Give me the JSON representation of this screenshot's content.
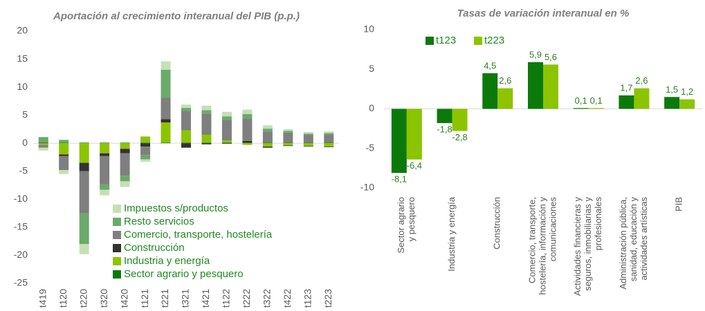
{
  "chart_data": [
    {
      "type": "stacked_bar",
      "title": "Aportación al crecimiento interanual del PIB (p.p.)",
      "categories": [
        "t419",
        "t120",
        "t220",
        "t320",
        "t420",
        "t121",
        "t221",
        "t321",
        "t421",
        "t122",
        "t222",
        "t322",
        "t422",
        "t123",
        "t223"
      ],
      "series": [
        {
          "name": "Sector agrario y pesquero",
          "color": "#0b7a0b",
          "values": [
            0,
            0.1,
            0.1,
            0.1,
            0.1,
            0.1,
            0.1,
            0.1,
            0.1,
            0.1,
            0.1,
            0.1,
            0.1,
            0.1,
            0.1
          ]
        },
        {
          "name": "Industria y energía",
          "color": "#8dc400",
          "values": [
            -0.3,
            -2,
            -3.5,
            -1.8,
            -1,
            1.1,
            3.6,
            2.2,
            1.4,
            0.4,
            -0.3,
            -0.6,
            -0.4,
            -0.5,
            -0.6
          ]
        },
        {
          "name": "Construcción",
          "color": "#333333",
          "values": [
            0.1,
            -0.3,
            -1.5,
            -0.5,
            -0.8,
            -0.6,
            0.6,
            -0.8,
            -0.2,
            -0.1,
            0.3,
            -0.2,
            -0.1,
            -0.1,
            -0.1
          ]
        },
        {
          "name": "Comercio, transporte, hostelería",
          "color": "#7f7f7f",
          "values": [
            -0.5,
            -2.5,
            -7.5,
            -5,
            -4,
            -1.5,
            3.8,
            3.4,
            3.8,
            3.6,
            4.0,
            2.0,
            1.8,
            1.4,
            1.4
          ]
        },
        {
          "name": "Resto servicios",
          "color": "#6aaa6a",
          "values": [
            1.0,
            0.5,
            -5.5,
            -1,
            -1,
            -0.8,
            5,
            0.6,
            0.6,
            0.7,
            0.8,
            0.5,
            0.3,
            0.2,
            0.3
          ]
        },
        {
          "name": "Impuestos s/productos",
          "color": "#c6e0b4",
          "values": [
            -0.5,
            -0.7,
            -1.8,
            -1,
            -1,
            -0.4,
            1.5,
            0.6,
            0.8,
            0.8,
            0.8,
            0.6,
            0.3,
            0.3,
            0.3
          ]
        }
      ],
      "ylim": [
        -25,
        20
      ],
      "yticks": [
        20,
        15,
        10,
        5,
        0,
        -5,
        -10,
        -15,
        -20,
        -25
      ],
      "grid": false
    },
    {
      "type": "bar",
      "title": "Tasas de variación interanual en %",
      "categories": [
        [
          "Sector agrario",
          "y pesquero"
        ],
        [
          "Industria y energía"
        ],
        [
          "Construcción"
        ],
        [
          "Comercio, transporte,",
          "hostelería, información y",
          "comunicaciones"
        ],
        [
          "Actividades financieras y",
          "seguros, inmobiliarias y",
          "profesionales"
        ],
        [
          "Administración pública,",
          "sanidad, educación y",
          "actividades artísticas"
        ],
        [
          "PIB"
        ]
      ],
      "series": [
        {
          "name": "t123",
          "color": "#0b7a0b",
          "values": [
            -8.1,
            -1.8,
            4.5,
            5.9,
            0.1,
            1.7,
            1.5
          ],
          "value_labels": [
            "-8,1",
            "-1,8",
            "4,5",
            "5,9",
            "0,1",
            "1,7",
            "1,5"
          ]
        },
        {
          "name": "t223",
          "color": "#8dc400",
          "values": [
            -6.4,
            -2.8,
            2.6,
            5.6,
            0.1,
            2.6,
            1.2
          ],
          "value_labels": [
            "-6,4",
            "-2,8",
            "2,6",
            "5,6",
            "0,1",
            "2,6",
            "1,2"
          ]
        }
      ],
      "ylim": [
        -10,
        10
      ],
      "yticks": [
        10,
        5,
        0,
        -5,
        -10
      ],
      "grid": false
    }
  ]
}
